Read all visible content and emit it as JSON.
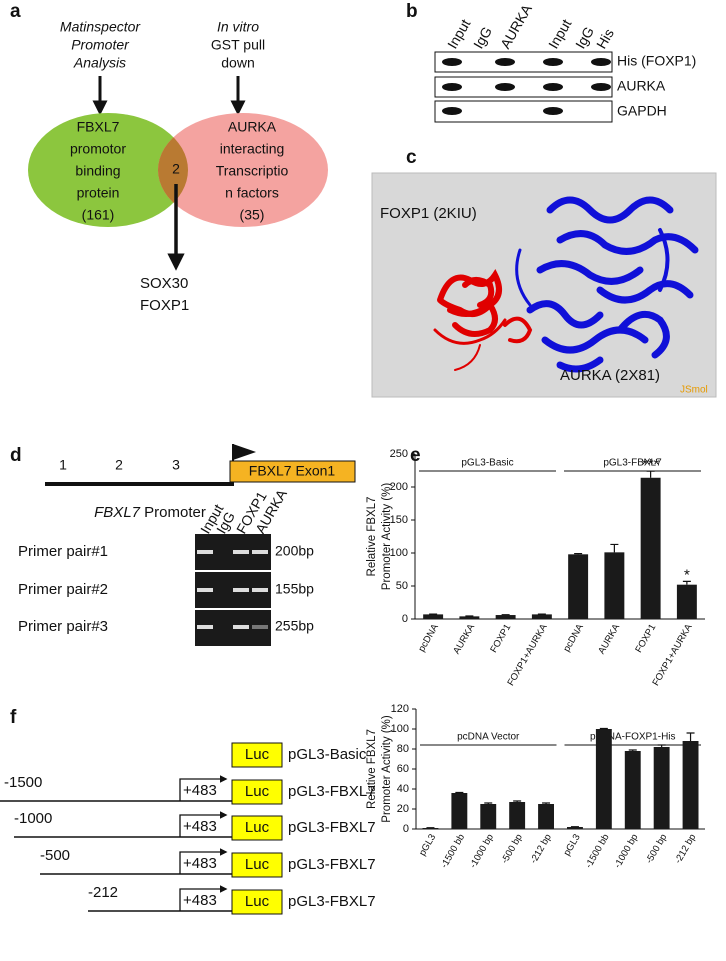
{
  "panel_labels": [
    "a",
    "b",
    "c",
    "d",
    "e",
    "f"
  ],
  "panel_a": {
    "left_source": [
      "Matinspector",
      "Promoter",
      "Analysis"
    ],
    "right_source": [
      "In vitro",
      "GST pull",
      "down"
    ],
    "left_set": [
      "FBXL7",
      "promotor",
      "binding",
      "protein",
      "(161)"
    ],
    "right_set": [
      "AURKA",
      "interacting",
      "Transcriptio",
      "n factors",
      "(35)"
    ],
    "overlap": "2",
    "result": [
      "SOX30",
      "FOXP1"
    ]
  },
  "panel_b": {
    "lanes": [
      "Input",
      "IgG",
      "AURKA",
      "Input",
      "IgG",
      "His"
    ],
    "rows": [
      "His (FOXP1)",
      "AURKA",
      "GAPDH"
    ]
  },
  "panel_c": {
    "label_1": "FOXP1 (2KIU)",
    "label_2": "AURKA (2X81)",
    "credit": "JSmol"
  },
  "panel_d": {
    "sites": [
      "1",
      "2",
      "3"
    ],
    "exon": "FBXL7 Exon1",
    "promoter_gene": "FBXL7",
    "promoter_word": "Promoter",
    "lanes": [
      "Input",
      "IgG",
      "FOXP1",
      "AURKA"
    ],
    "rows": [
      {
        "name": "Primer pair#1",
        "size": "200bp"
      },
      {
        "name": "Primer pair#2",
        "size": "155bp"
      },
      {
        "name": "Primer pair#3",
        "size": "255bp"
      }
    ]
  },
  "panel_f_constructs": {
    "reporter": "Luc",
    "end": "+483",
    "constructs": [
      {
        "name": "pGL3-Basic"
      },
      {
        "start": "-1500",
        "name": "pGL3-FBXL7"
      },
      {
        "start": "-1000",
        "name": "pGL3-FBXL7"
      },
      {
        "start": "-500",
        "name": "pGL3-FBXL7"
      },
      {
        "start": "-212",
        "name": "pGL3-FBXL7"
      }
    ]
  },
  "chart_data": [
    {
      "type": "bar",
      "ylabel": [
        "Relative FBXL7",
        "Promoter Activity (%)"
      ],
      "groups": [
        "pGL3-Basic",
        "pGL3-FBXL7"
      ],
      "categories": [
        "pcDNA",
        "AURKA",
        "FOXP1",
        "FOXP1+AURKA",
        "pcDNA",
        "AURKA",
        "FOXP1",
        "FOXP1+AURKA"
      ],
      "values": [
        7,
        4,
        6,
        7,
        98,
        101,
        214,
        52
      ],
      "errors": [
        0.5,
        0.5,
        0.5,
        0.5,
        1,
        12,
        10,
        5
      ],
      "annotations": [
        null,
        null,
        null,
        null,
        null,
        null,
        "***",
        "*"
      ],
      "color": "#1a1a1a",
      "ylim": [
        0,
        250
      ],
      "yticks": [
        0,
        50,
        100,
        150,
        200,
        250
      ]
    },
    {
      "type": "bar",
      "ylabel": [
        "Relative FBXL7",
        "Promoter Activity (%)"
      ],
      "groups": [
        "pcDNA  Vector",
        "pcDNA-FOXP1-His"
      ],
      "categories": [
        "pGL3",
        "-1500 bb",
        "-1000 bp",
        "-500 bp",
        "-212 bp",
        "pGL3",
        "-1500 bb",
        "-1000 bp",
        "-500 bp",
        "-212 bp"
      ],
      "values": [
        1,
        36,
        25,
        27,
        25,
        2,
        100,
        78,
        82,
        88
      ],
      "errors": [
        0.3,
        0.5,
        1,
        1,
        1,
        0.3,
        0.5,
        1,
        2,
        8
      ],
      "color": "#1a1a1a",
      "ylim": [
        0,
        120
      ],
      "yticks": [
        0,
        20,
        40,
        60,
        80,
        100,
        120
      ]
    }
  ]
}
